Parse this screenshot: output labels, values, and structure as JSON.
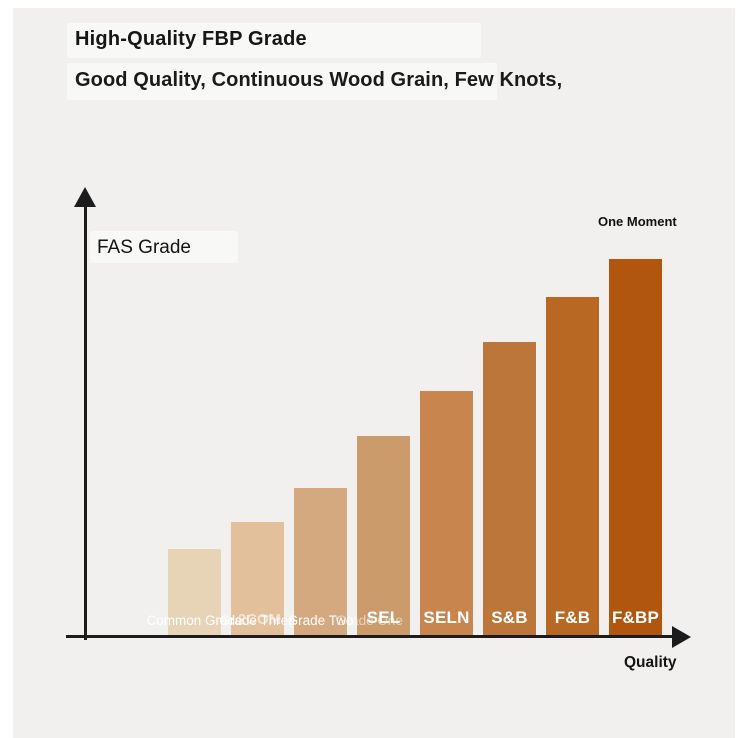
{
  "page": {
    "background": "#ffffff",
    "panel_background": "#f1f0ee"
  },
  "header": {
    "title": "High-Quality FBP Grade",
    "subtitle": "Good Quality, Continuous Wood Grain, Few Knots,"
  },
  "annotations": {
    "one_moment": "One Moment"
  },
  "chart_data": {
    "type": "bar",
    "title": "High-Quality FBP Grade",
    "subtitle": "Good Quality, Continuous Wood Grain, Few Knots,",
    "xlabel": "Quality",
    "ylabel": "FAS Grade",
    "axis_color": "#1c1c1c",
    "gridlines": false,
    "legend": false,
    "value_note": "no numeric axis shown; values are relative bar heights as percent of tallest bar",
    "categories": [
      "Common Grade",
      "Grade Three",
      "Grade Two",
      "SEL",
      "SELN",
      "S&B",
      "F&B",
      "F&BP"
    ],
    "values": [
      23,
      30,
      39,
      53,
      65,
      78,
      90,
      100
    ],
    "bars": [
      {
        "label": "Common Grade",
        "label_style": "small",
        "ghost_label": "",
        "ghost_style": "",
        "value": 23,
        "color": "#e7d3b6"
      },
      {
        "label": "Grade Three",
        "label_style": "small",
        "ghost_label": "2COM",
        "ghost_style": "bold",
        "value": 30,
        "color": "#e1c09b"
      },
      {
        "label": "Grade Two",
        "label_style": "small",
        "ghost_label": "",
        "ghost_style": "",
        "value": 39,
        "color": "#d4a97f"
      },
      {
        "label": "SEL",
        "label_style": "bold",
        "ghost_label": "Grade One",
        "ghost_style": "small",
        "value": 53,
        "color": "#cb9b6b"
      },
      {
        "label": "SELN",
        "label_style": "bold",
        "ghost_label": "",
        "ghost_style": "",
        "value": 65,
        "color": "#c8854e"
      },
      {
        "label": "S&B",
        "label_style": "bold",
        "ghost_label": "",
        "ghost_style": "",
        "value": 78,
        "color": "#bd7639"
      },
      {
        "label": "F&B",
        "label_style": "bold",
        "ghost_label": "",
        "ghost_style": "",
        "value": 90,
        "color": "#b96823"
      },
      {
        "label": "F&BP",
        "label_style": "bold",
        "ghost_label": "",
        "ghost_style": "",
        "value": 100,
        "color": "#b1560e"
      }
    ]
  }
}
